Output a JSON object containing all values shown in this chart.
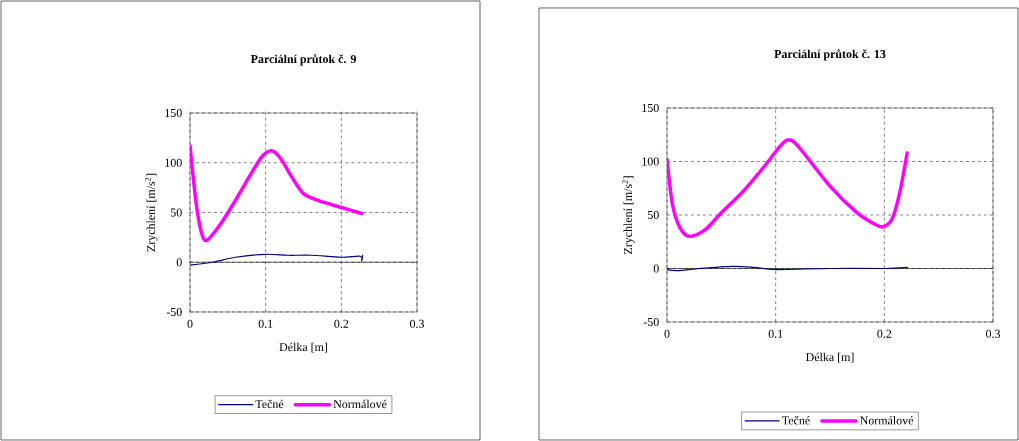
{
  "chart_data": [
    {
      "type": "line",
      "title": "Parciální průtok č. 9",
      "xlabel": "Délka [m]",
      "ylabel": "Zrychlení [m/s$^{2}$]",
      "xlim": [
        0,
        0.3
      ],
      "ylim": [
        -50,
        150
      ],
      "xticks": [
        0,
        0.1,
        0.2,
        0.3
      ],
      "yticks": [
        -50,
        0,
        50,
        100,
        150
      ],
      "grid": true,
      "legend": "bottom",
      "series": [
        {
          "name": "Tečné",
          "color": "#000080",
          "x": [
            0,
            0.03,
            0.06,
            0.1,
            0.13,
            0.16,
            0.2,
            0.225,
            0.227,
            0.228
          ],
          "values": [
            -3,
            0,
            5,
            8,
            7,
            7,
            5,
            6,
            1,
            7
          ]
        },
        {
          "name": "Normálové",
          "color": "#ff00ff",
          "x": [
            0,
            0.008,
            0.015,
            0.022,
            0.04,
            0.06,
            0.08,
            0.095,
            0.108,
            0.12,
            0.135,
            0.15,
            0.17,
            0.2,
            0.227
          ],
          "values": [
            117,
            60,
            30,
            22,
            38,
            62,
            88,
            106,
            112,
            104,
            85,
            69,
            62,
            55,
            49
          ]
        }
      ]
    },
    {
      "type": "line",
      "title": "Parciální průtok č. 13",
      "xlabel": "Délka [m]",
      "ylabel": "Zrychlení [m/s$^{2}$]",
      "xlim": [
        0,
        0.3
      ],
      "ylim": [
        -50,
        150
      ],
      "xticks": [
        0,
        0.1,
        0.2,
        0.3
      ],
      "yticks": [
        -50,
        0,
        50,
        100,
        150
      ],
      "grid": true,
      "legend": "bottom",
      "series": [
        {
          "name": "Tečné",
          "color": "#000080",
          "x": [
            0,
            0.01,
            0.03,
            0.06,
            0.08,
            0.1,
            0.15,
            0.2,
            0.221
          ],
          "values": [
            -1,
            -2,
            0,
            2,
            1,
            -1,
            0,
            0,
            1
          ]
        },
        {
          "name": "Normálové",
          "color": "#ff00ff",
          "x": [
            0,
            0.005,
            0.012,
            0.021,
            0.035,
            0.05,
            0.07,
            0.09,
            0.103,
            0.111,
            0.12,
            0.15,
            0.175,
            0.192,
            0.199,
            0.207,
            0.214,
            0.221
          ],
          "values": [
            102,
            60,
            38,
            30,
            36,
            52,
            72,
            96,
            113,
            120,
            115,
            77,
            52,
            41,
            39,
            46,
            70,
            108
          ]
        }
      ]
    }
  ]
}
